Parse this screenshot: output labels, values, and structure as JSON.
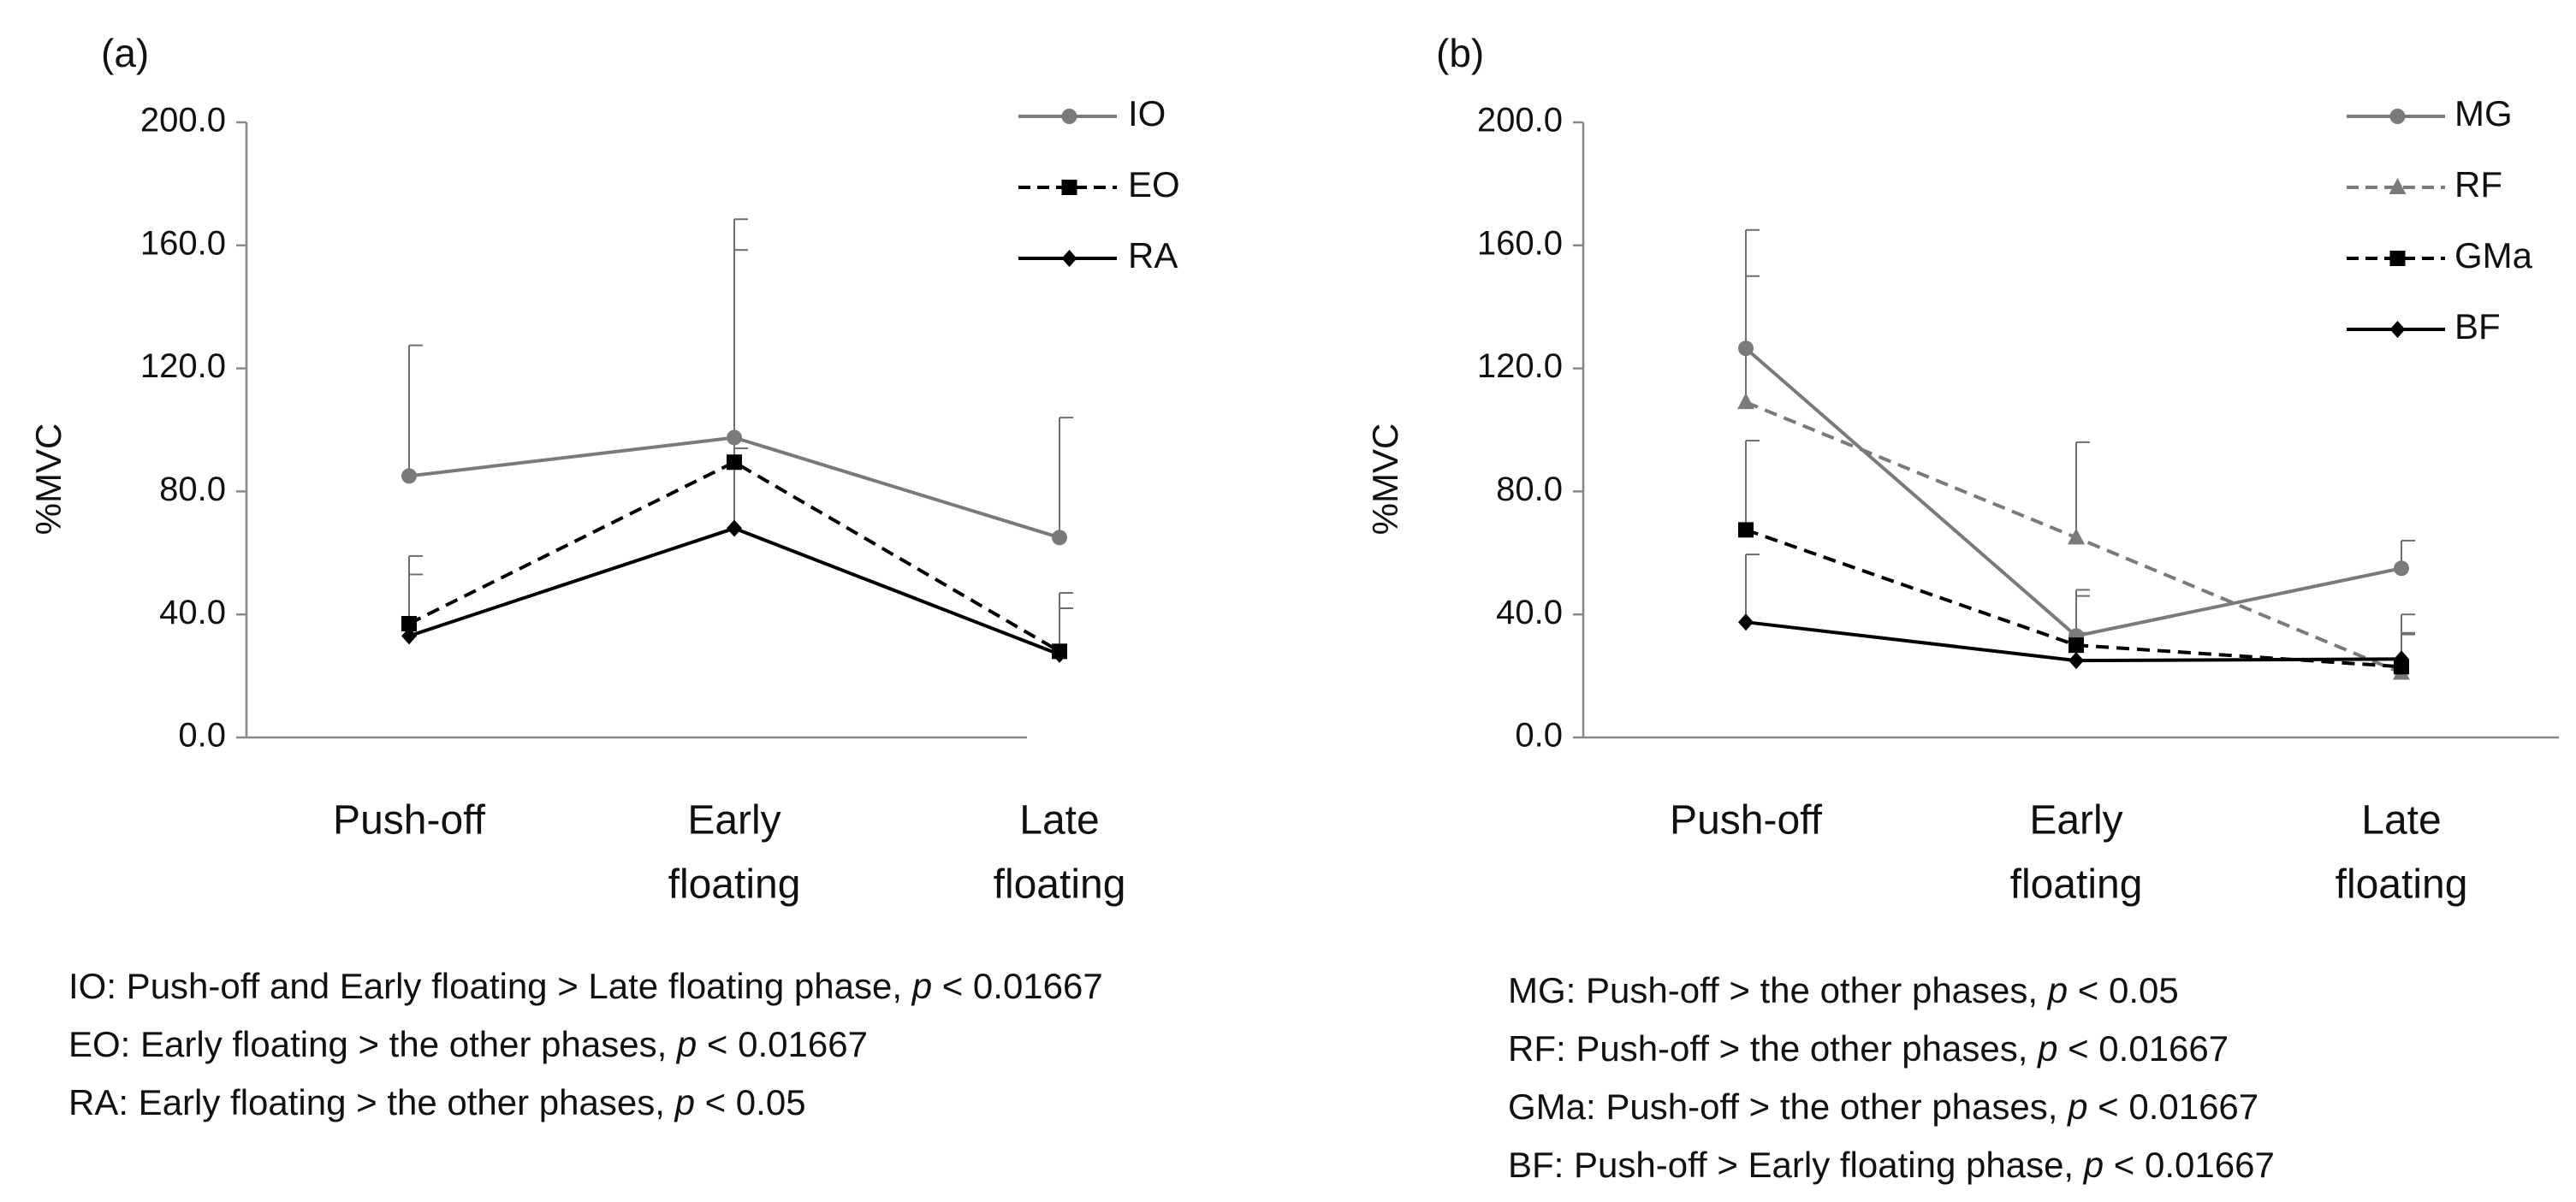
{
  "chart_data": [
    {
      "type": "line",
      "panel_label": "(a)",
      "title": "",
      "xlabel": "",
      "ylabel": "%MVC",
      "ylim": [
        0,
        200
      ],
      "yticks": [
        "200.0",
        "160.0",
        "120.0",
        "80.0",
        "40.0",
        "0.0"
      ],
      "categories": [
        [
          "Push-off"
        ],
        [
          "Early",
          "floating"
        ],
        [
          "Late",
          "floating"
        ]
      ],
      "legend_position": "top-right",
      "series": [
        {
          "name": "IO",
          "values": [
            85.0,
            97.5,
            65.0
          ],
          "err": [
            42.5,
            71.0,
            39.0
          ],
          "color": "#7a7a7a",
          "dash": "solid",
          "marker": "circle"
        },
        {
          "name": "EO",
          "values": [
            37.0,
            89.5,
            28.0
          ],
          "err": [
            22.0,
            69.0,
            19.0
          ],
          "color": "#000000",
          "dash": "dashed",
          "marker": "square"
        },
        {
          "name": "RA",
          "values": [
            33.0,
            68.0,
            27.0
          ],
          "err": [
            20.0,
            26.0,
            15.0
          ],
          "color": "#000000",
          "dash": "solid",
          "marker": "diamond"
        }
      ],
      "notes": [
        {
          "prefix": "IO: Push-off and Early floating > Late floating phase, ",
          "p": "p",
          "suffix": " < 0.01667"
        },
        {
          "prefix": "EO: Early floating > the other phases, ",
          "p": "p",
          "suffix": " < 0.01667"
        },
        {
          "prefix": "RA: Early floating > the other phases, ",
          "p": "p",
          "suffix": " < 0.05"
        }
      ]
    },
    {
      "type": "line",
      "panel_label": "(b)",
      "title": "",
      "xlabel": "",
      "ylabel": "%MVC",
      "ylim": [
        0,
        200
      ],
      "yticks": [
        "200.0",
        "160.0",
        "120.0",
        "80.0",
        "40.0",
        "0.0"
      ],
      "categories": [
        [
          "Push-off"
        ],
        [
          "Early",
          "floating"
        ],
        [
          "Late",
          "floating"
        ]
      ],
      "legend_position": "top-right",
      "series": [
        {
          "name": "MG",
          "values": [
            126.5,
            33.0,
            55.0
          ],
          "err": [
            38.5,
            15.0,
            9.0
          ],
          "color": "#7a7a7a",
          "dash": "solid",
          "marker": "circle"
        },
        {
          "name": "RF",
          "values": [
            109.0,
            65.0,
            21.0
          ],
          "err": [
            41.0,
            31.0,
            19.0
          ],
          "color": "#7a7a7a",
          "dash": "dashed",
          "marker": "triangle"
        },
        {
          "name": "GMa",
          "values": [
            67.5,
            30.0,
            23.0
          ],
          "err": [
            29.0,
            16.0,
            11.0
          ],
          "color": "#000000",
          "dash": "dashed",
          "marker": "square"
        },
        {
          "name": "BF",
          "values": [
            37.5,
            25.0,
            25.5
          ],
          "err": [
            22.0,
            9.0,
            8.0
          ],
          "color": "#000000",
          "dash": "solid",
          "marker": "diamond"
        }
      ],
      "notes": [
        {
          "prefix": "MG: Push-off >  the other phases, ",
          "p": "p",
          "suffix": " < 0.05"
        },
        {
          "prefix": "RF: Push-off >  the other phases, ",
          "p": "p",
          "suffix": " < 0.01667"
        },
        {
          "prefix": "GMa: Push-off >  the other phases, ",
          "p": "p",
          "suffix": " < 0.01667"
        },
        {
          "prefix": "BF: Push-off > Early floating phase, ",
          "p": "p",
          "suffix": " < 0.01667"
        }
      ]
    }
  ]
}
